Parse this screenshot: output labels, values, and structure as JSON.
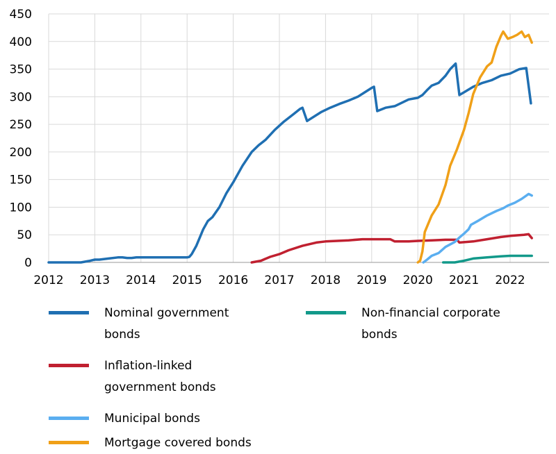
{
  "chart_data": {
    "type": "line",
    "title": "",
    "xlabel": "",
    "ylabel": "",
    "xlim": [
      2012.0,
      2022.85
    ],
    "ylim": [
      0,
      450
    ],
    "x_ticks": [
      "2012",
      "2013",
      "2014",
      "2015",
      "2016",
      "2017",
      "2018",
      "2019",
      "2020",
      "2021",
      "2022"
    ],
    "y_ticks": [
      "0",
      "50",
      "100",
      "150",
      "200",
      "250",
      "300",
      "350",
      "400",
      "450"
    ],
    "grid": "vertical and horizontal gridlines",
    "legend_position": "bottom",
    "series": [
      {
        "name": "Nominal government bonds",
        "color": "#1f6fb2",
        "points": [
          [
            2012.0,
            0
          ],
          [
            2012.7,
            0
          ],
          [
            2012.9,
            3
          ],
          [
            2013.0,
            5
          ],
          [
            2013.1,
            5
          ],
          [
            2013.3,
            7
          ],
          [
            2013.5,
            9
          ],
          [
            2013.6,
            9
          ],
          [
            2013.7,
            8
          ],
          [
            2013.8,
            8
          ],
          [
            2013.9,
            9
          ],
          [
            2014.5,
            9
          ],
          [
            2015.0,
            9
          ],
          [
            2015.05,
            10
          ],
          [
            2015.1,
            15
          ],
          [
            2015.2,
            30
          ],
          [
            2015.35,
            60
          ],
          [
            2015.45,
            75
          ],
          [
            2015.55,
            82
          ],
          [
            2015.7,
            100
          ],
          [
            2015.85,
            125
          ],
          [
            2016.0,
            145
          ],
          [
            2016.2,
            175
          ],
          [
            2016.4,
            200
          ],
          [
            2016.55,
            212
          ],
          [
            2016.7,
            222
          ],
          [
            2016.9,
            240
          ],
          [
            2017.1,
            255
          ],
          [
            2017.3,
            268
          ],
          [
            2017.45,
            278
          ],
          [
            2017.5,
            280
          ],
          [
            2017.6,
            256
          ],
          [
            2017.9,
            272
          ],
          [
            2018.1,
            280
          ],
          [
            2018.3,
            287
          ],
          [
            2018.5,
            293
          ],
          [
            2018.7,
            300
          ],
          [
            2018.85,
            308
          ],
          [
            2019.0,
            316
          ],
          [
            2019.05,
            318
          ],
          [
            2019.12,
            274
          ],
          [
            2019.3,
            280
          ],
          [
            2019.5,
            283
          ],
          [
            2019.8,
            295
          ],
          [
            2020.0,
            298
          ],
          [
            2020.1,
            303
          ],
          [
            2020.2,
            312
          ],
          [
            2020.3,
            320
          ],
          [
            2020.45,
            325
          ],
          [
            2020.6,
            338
          ],
          [
            2020.7,
            350
          ],
          [
            2020.82,
            360
          ],
          [
            2020.9,
            303
          ],
          [
            2021.0,
            308
          ],
          [
            2021.2,
            318
          ],
          [
            2021.4,
            325
          ],
          [
            2021.6,
            330
          ],
          [
            2021.8,
            338
          ],
          [
            2022.0,
            342
          ],
          [
            2022.2,
            350
          ],
          [
            2022.35,
            352
          ],
          [
            2022.45,
            288
          ]
        ]
      },
      {
        "name": "Inflation-linked government bonds",
        "color": "#c02030",
        "points": [
          [
            2016.4,
            0
          ],
          [
            2016.6,
            3
          ],
          [
            2016.8,
            10
          ],
          [
            2017.0,
            15
          ],
          [
            2017.2,
            22
          ],
          [
            2017.5,
            30
          ],
          [
            2017.8,
            36
          ],
          [
            2018.0,
            38
          ],
          [
            2018.5,
            40
          ],
          [
            2018.8,
            42
          ],
          [
            2019.0,
            42
          ],
          [
            2019.4,
            42
          ],
          [
            2019.5,
            38
          ],
          [
            2019.8,
            38
          ],
          [
            2020.0,
            39
          ],
          [
            2020.3,
            40
          ],
          [
            2020.6,
            41
          ],
          [
            2020.85,
            41
          ],
          [
            2020.9,
            36
          ],
          [
            2021.2,
            38
          ],
          [
            2021.5,
            42
          ],
          [
            2021.8,
            46
          ],
          [
            2022.0,
            48
          ],
          [
            2022.3,
            50
          ],
          [
            2022.4,
            51
          ],
          [
            2022.47,
            44
          ]
        ]
      },
      {
        "name": "Municipal bonds",
        "color": "#5aaef0",
        "points": [
          [
            2020.12,
            0
          ],
          [
            2020.2,
            5
          ],
          [
            2020.3,
            12
          ],
          [
            2020.45,
            17
          ],
          [
            2020.6,
            28
          ],
          [
            2020.8,
            37
          ],
          [
            2020.9,
            45
          ],
          [
            2021.0,
            52
          ],
          [
            2021.1,
            60
          ],
          [
            2021.15,
            68
          ],
          [
            2021.3,
            75
          ],
          [
            2021.5,
            85
          ],
          [
            2021.7,
            93
          ],
          [
            2021.85,
            98
          ],
          [
            2021.95,
            103
          ],
          [
            2022.1,
            108
          ],
          [
            2022.25,
            115
          ],
          [
            2022.4,
            124
          ],
          [
            2022.47,
            121
          ]
        ]
      },
      {
        "name": "Mortgage covered bonds",
        "color": "#f0a018",
        "points": [
          [
            2020.0,
            0
          ],
          [
            2020.05,
            3
          ],
          [
            2020.1,
            20
          ],
          [
            2020.15,
            55
          ],
          [
            2020.3,
            85
          ],
          [
            2020.45,
            105
          ],
          [
            2020.6,
            140
          ],
          [
            2020.7,
            175
          ],
          [
            2020.85,
            205
          ],
          [
            2021.0,
            240
          ],
          [
            2021.1,
            270
          ],
          [
            2021.2,
            305
          ],
          [
            2021.35,
            335
          ],
          [
            2021.5,
            355
          ],
          [
            2021.6,
            362
          ],
          [
            2021.7,
            390
          ],
          [
            2021.8,
            410
          ],
          [
            2021.85,
            418
          ],
          [
            2021.95,
            405
          ],
          [
            2022.05,
            408
          ],
          [
            2022.15,
            412
          ],
          [
            2022.25,
            418
          ],
          [
            2022.32,
            408
          ],
          [
            2022.4,
            412
          ],
          [
            2022.47,
            398
          ]
        ]
      },
      {
        "name": "Non-financial corporate bonds",
        "color": "#12998a",
        "points": [
          [
            2020.55,
            0
          ],
          [
            2020.8,
            0
          ],
          [
            2021.0,
            3
          ],
          [
            2021.2,
            7
          ],
          [
            2021.5,
            9
          ],
          [
            2021.8,
            11
          ],
          [
            2022.0,
            12
          ],
          [
            2022.47,
            12
          ]
        ]
      }
    ]
  },
  "legend": {
    "nominal": "Nominal government",
    "nominal_2": "bonds",
    "nonfin": "Non-financial corporate",
    "nonfin_2": "bonds",
    "inflation": "Inflation-linked",
    "inflation_2": "government bonds",
    "municipal": "Municipal bonds",
    "mortgage": "Mortgage covered bonds"
  }
}
